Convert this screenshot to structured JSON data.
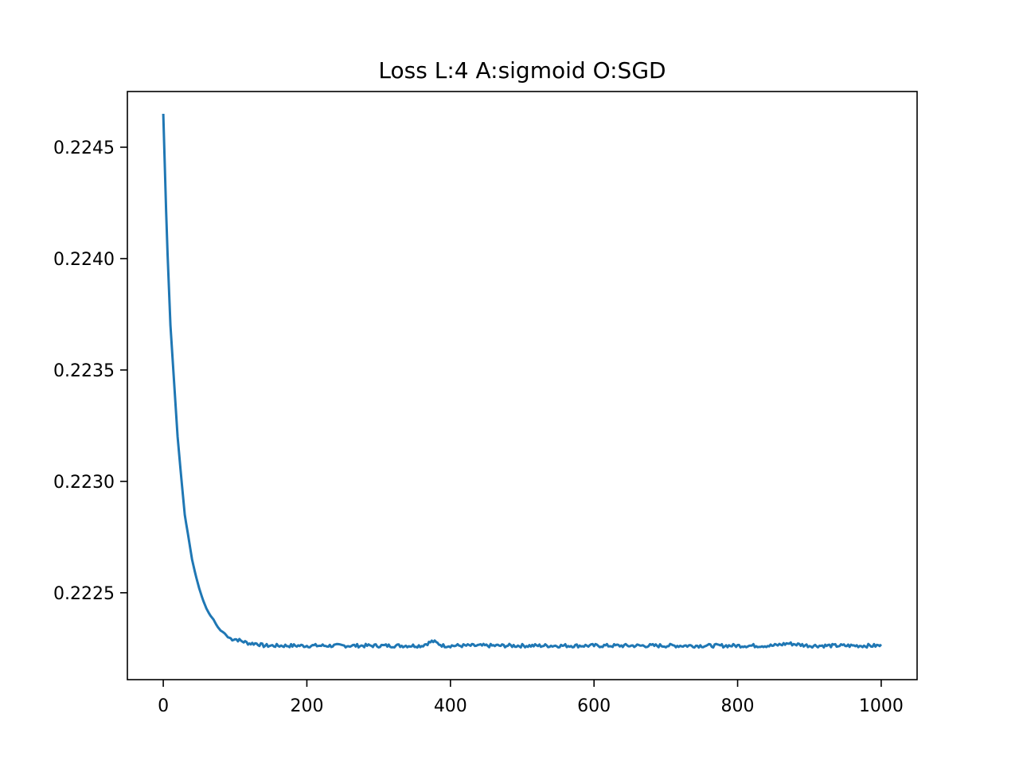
{
  "chart_data": {
    "type": "line",
    "title": "Loss L:4 A:sigmoid O:SGD",
    "xlabel": "",
    "ylabel": "",
    "xlim": [
      -50,
      1050
    ],
    "ylim": [
      0.22211,
      0.22475
    ],
    "x_ticks": [
      0,
      200,
      400,
      600,
      800,
      1000
    ],
    "x_tick_labels": [
      "0",
      "200",
      "400",
      "600",
      "800",
      "1000"
    ],
    "y_ticks": [
      0.2225,
      0.223,
      0.2235,
      0.224,
      0.2245
    ],
    "y_tick_labels": [
      "0.2225",
      "0.2230",
      "0.2235",
      "0.2240",
      "0.2245"
    ],
    "grid": false,
    "legend": "none",
    "series": [
      {
        "color": "#1f77b4",
        "x": [
          0,
          5,
          10,
          15,
          20,
          25,
          30,
          35,
          40,
          45,
          50,
          55,
          60,
          65,
          70,
          75,
          80,
          85,
          90,
          95,
          100,
          110,
          120,
          130,
          140,
          150,
          160,
          170,
          180,
          200,
          220,
          240,
          260,
          280,
          300,
          330,
          360,
          375,
          390,
          420,
          450,
          480,
          510,
          540,
          570,
          600,
          650,
          700,
          750,
          800,
          850,
          870,
          900,
          950,
          1000
        ],
        "y": [
          0.22465,
          0.2241,
          0.2237,
          0.22345,
          0.2232,
          0.22302,
          0.22285,
          0.22275,
          0.22265,
          0.22258,
          0.22252,
          0.22247,
          0.22243,
          0.2224,
          0.22238,
          0.22235,
          0.22233,
          0.22232,
          0.2223,
          0.22229,
          0.22229,
          0.22228,
          0.22227,
          0.22227,
          0.22226,
          0.22226,
          0.22226,
          0.22226,
          0.22226,
          0.22226,
          0.22226,
          0.22226,
          0.22226,
          0.22226,
          0.22226,
          0.22226,
          0.22226,
          0.22228,
          0.22226,
          0.22226,
          0.22226,
          0.22226,
          0.22226,
          0.22226,
          0.22226,
          0.22226,
          0.22226,
          0.22226,
          0.22226,
          0.22226,
          0.22226,
          0.22227,
          0.22226,
          0.22226,
          0.22226
        ]
      }
    ]
  }
}
